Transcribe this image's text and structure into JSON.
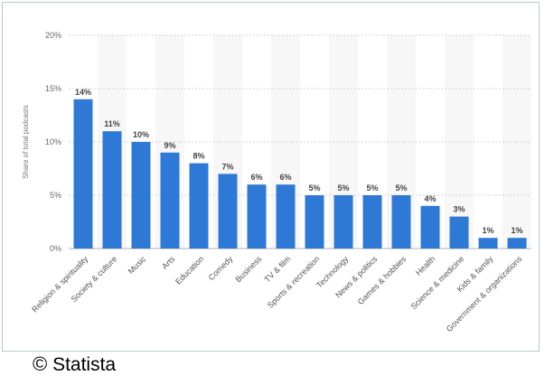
{
  "credit": {
    "symbol": "©",
    "text": "Statista"
  },
  "chart_data": {
    "type": "bar",
    "ylabel": "Share of total podcasts",
    "ylim": [
      0,
      20
    ],
    "yticks": [
      0,
      5,
      10,
      15,
      20
    ],
    "ytick_labels": [
      "0%",
      "5%",
      "10%",
      "15%",
      "20%"
    ],
    "grid": true,
    "categories": [
      "Religion & spirituality",
      "Society & culture",
      "Music",
      "Arts",
      "Education",
      "Comedy",
      "Business",
      "TV & film",
      "Sports & recreation",
      "Technology",
      "News & politics",
      "Games & hobbies",
      "Health",
      "Science & medicine",
      "Kids & family",
      "Government & organizations"
    ],
    "values": [
      14,
      11,
      10,
      9,
      8,
      7,
      6,
      6,
      5,
      5,
      5,
      5,
      4,
      3,
      1,
      1
    ],
    "data_labels": [
      "14%",
      "11%",
      "10%",
      "9%",
      "8%",
      "7%",
      "6%",
      "6%",
      "5%",
      "5%",
      "5%",
      "5%",
      "4%",
      "3%",
      "1%",
      "1%"
    ],
    "colors": {
      "bar": "#2e78d6",
      "band": "#f7f7f7",
      "grid": "#d0d0d0",
      "axis": "#b0b0b0"
    }
  }
}
